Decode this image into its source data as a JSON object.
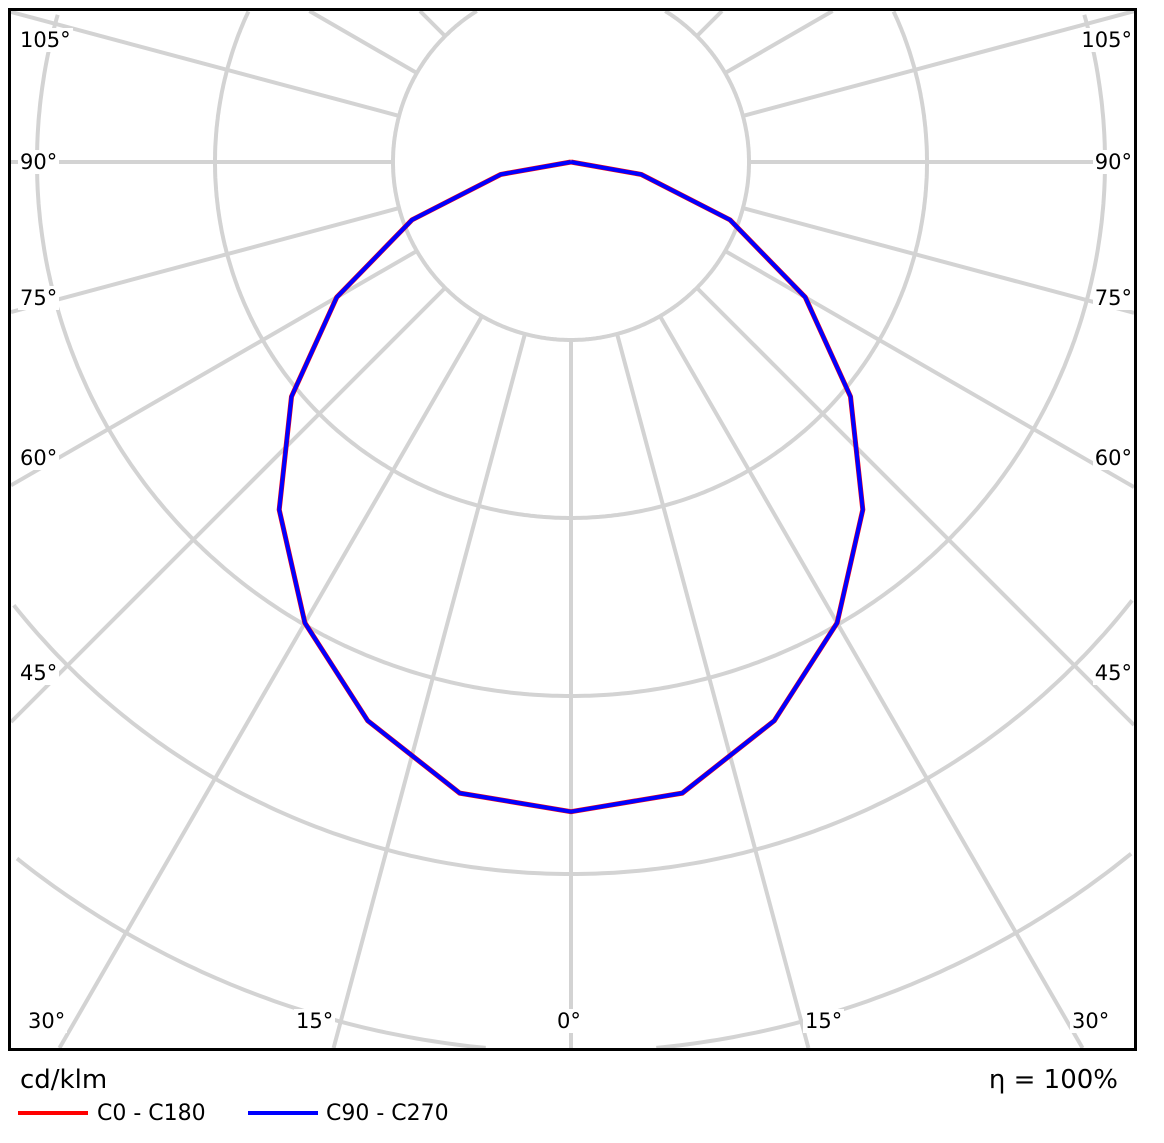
{
  "chart_data": {
    "type": "polar-line",
    "unit": "cd/klm",
    "efficiency_label": "η = 100%",
    "angle_labels_left": [
      "105°",
      "90°",
      "75°",
      "60°",
      "45°"
    ],
    "angle_labels_bottom": [
      "30°",
      "15°",
      "0°",
      "15°",
      "30°"
    ],
    "angles_deg": [
      0,
      10,
      20,
      30,
      40,
      50,
      60,
      70,
      80,
      90
    ],
    "series": [
      {
        "name": "C0 - C180",
        "color": "#ff0000",
        "values": [
          365,
          360,
          334,
          299,
          255,
          205,
          152,
          95,
          40,
          0
        ]
      },
      {
        "name": "C90 - C270",
        "color": "#0000ff",
        "values": [
          365,
          360,
          334,
          299,
          255,
          205,
          152,
          95,
          40,
          0
        ]
      }
    ],
    "grid": true,
    "grid_color": "#d3d3d3",
    "ring_step": 100
  }
}
